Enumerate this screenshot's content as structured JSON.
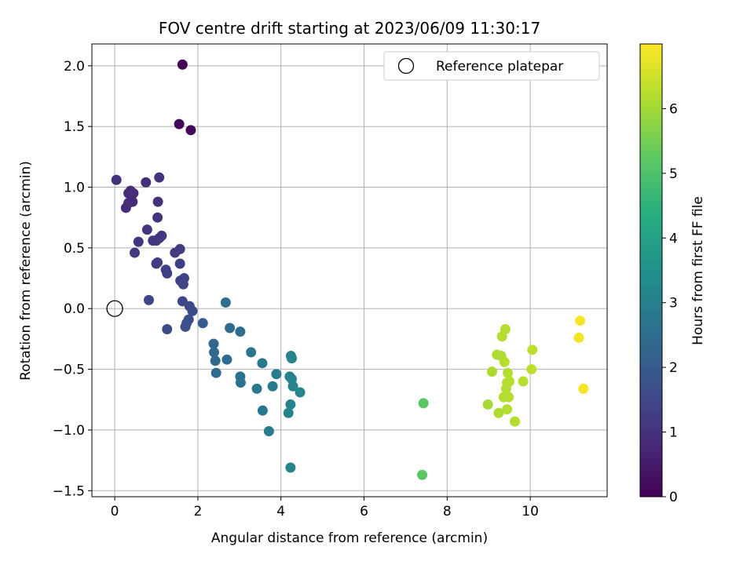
{
  "chart_data": {
    "type": "scatter",
    "title": "FOV centre drift starting at 2023/06/09 11:30:17",
    "xlabel": "Angular distance from reference (arcmin)",
    "ylabel": "Rotation from reference (arcmin)",
    "xlim": [
      -0.55,
      11.85
    ],
    "ylim": [
      -1.55,
      2.18
    ],
    "xticks": [
      0,
      2,
      4,
      6,
      8,
      10
    ],
    "yticks": [
      -1.5,
      -1.0,
      -0.5,
      0.0,
      0.5,
      1.0,
      1.5,
      2.0
    ],
    "xtick_labels": [
      "0",
      "2",
      "4",
      "6",
      "8",
      "10"
    ],
    "ytick_labels": [
      "−1.5",
      "−1.0",
      "−0.5",
      "0.0",
      "0.5",
      "1.0",
      "1.5",
      "2.0"
    ],
    "grid": true,
    "legend": {
      "placement": "top-right",
      "entries": [
        "Reference platepar"
      ]
    },
    "reference_point": {
      "x": 0,
      "y": 0
    },
    "colorbar": {
      "label": "Hours from first FF file",
      "colormap": "viridis",
      "range": [
        0,
        7.0
      ],
      "ticks": [
        0,
        1,
        2,
        3,
        4,
        5,
        6
      ],
      "tick_labels": [
        "0",
        "1",
        "2",
        "3",
        "4",
        "5",
        "6"
      ]
    },
    "points": [
      [
        1.63,
        2.01,
        0.05
      ],
      [
        1.55,
        1.52,
        0.1
      ],
      [
        1.83,
        1.47,
        0.15
      ],
      [
        0.04,
        1.06,
        1.0
      ],
      [
        1.07,
        1.08,
        1.0
      ],
      [
        0.75,
        1.04,
        0.95
      ],
      [
        0.38,
        0.97,
        0.9
      ],
      [
        0.33,
        0.95,
        0.85
      ],
      [
        0.45,
        0.95,
        0.9
      ],
      [
        1.04,
        0.88,
        0.95
      ],
      [
        0.33,
        0.87,
        0.9
      ],
      [
        0.43,
        0.88,
        0.85
      ],
      [
        0.27,
        0.83,
        0.85
      ],
      [
        1.03,
        0.75,
        1.0
      ],
      [
        0.78,
        0.65,
        1.05
      ],
      [
        1.13,
        0.6,
        1.1
      ],
      [
        1.07,
        0.58,
        1.1
      ],
      [
        0.92,
        0.56,
        1.15
      ],
      [
        1.0,
        0.56,
        1.1
      ],
      [
        0.57,
        0.55,
        1.05
      ],
      [
        1.57,
        0.49,
        1.2
      ],
      [
        1.45,
        0.46,
        1.2
      ],
      [
        0.48,
        0.46,
        1.15
      ],
      [
        1.03,
        0.38,
        1.2
      ],
      [
        1.0,
        0.37,
        1.25
      ],
      [
        1.57,
        0.37,
        1.3
      ],
      [
        1.23,
        0.32,
        1.3
      ],
      [
        1.26,
        0.29,
        1.3
      ],
      [
        1.67,
        0.25,
        1.4
      ],
      [
        1.58,
        0.23,
        1.35
      ],
      [
        1.65,
        0.2,
        1.4
      ],
      [
        0.82,
        0.07,
        1.5
      ],
      [
        1.63,
        0.06,
        1.45
      ],
      [
        1.8,
        0.02,
        1.55
      ],
      [
        1.87,
        -0.02,
        1.6
      ],
      [
        1.78,
        -0.09,
        1.65
      ],
      [
        1.73,
        -0.12,
        1.65
      ],
      [
        1.7,
        -0.15,
        1.7
      ],
      [
        1.26,
        -0.17,
        1.6
      ],
      [
        2.12,
        -0.12,
        2.0
      ],
      [
        2.67,
        0.05,
        2.5
      ],
      [
        2.77,
        -0.16,
        2.4
      ],
      [
        3.02,
        -0.19,
        2.5
      ],
      [
        2.38,
        -0.29,
        2.3
      ],
      [
        2.39,
        -0.36,
        2.35
      ],
      [
        2.42,
        -0.43,
        2.35
      ],
      [
        2.7,
        -0.42,
        2.5
      ],
      [
        2.44,
        -0.53,
        2.4
      ],
      [
        3.28,
        -0.36,
        2.7
      ],
      [
        3.55,
        -0.45,
        2.8
      ],
      [
        3.89,
        -0.54,
        2.9
      ],
      [
        3.02,
        -0.56,
        2.6
      ],
      [
        3.03,
        -0.61,
        2.6
      ],
      [
        3.42,
        -0.66,
        2.8
      ],
      [
        3.8,
        -0.64,
        2.9
      ],
      [
        3.56,
        -0.84,
        2.8
      ],
      [
        3.71,
        -1.01,
        2.9
      ],
      [
        4.24,
        -0.39,
        3.1
      ],
      [
        4.26,
        -0.41,
        3.1
      ],
      [
        4.21,
        -0.56,
        3.05
      ],
      [
        4.26,
        -0.58,
        3.1
      ],
      [
        4.29,
        -0.64,
        3.1
      ],
      [
        4.46,
        -0.69,
        3.2
      ],
      [
        4.23,
        -0.79,
        3.1
      ],
      [
        4.18,
        -0.86,
        3.1
      ],
      [
        4.23,
        -1.31,
        3.1
      ],
      [
        7.43,
        -0.78,
        5.2
      ],
      [
        7.4,
        -1.37,
        5.2
      ],
      [
        9.4,
        -0.17,
        6.2
      ],
      [
        9.32,
        -0.23,
        6.2
      ],
      [
        9.2,
        -0.38,
        6.15
      ],
      [
        9.3,
        -0.39,
        6.15
      ],
      [
        10.05,
        -0.34,
        6.3
      ],
      [
        9.38,
        -0.44,
        6.2
      ],
      [
        10.03,
        -0.5,
        6.3
      ],
      [
        9.08,
        -0.52,
        6.1
      ],
      [
        9.46,
        -0.53,
        6.2
      ],
      [
        9.5,
        -0.6,
        6.25
      ],
      [
        9.44,
        -0.61,
        6.2
      ],
      [
        9.83,
        -0.6,
        6.25
      ],
      [
        9.42,
        -0.66,
        6.2
      ],
      [
        9.36,
        -0.73,
        6.2
      ],
      [
        9.48,
        -0.73,
        6.2
      ],
      [
        8.98,
        -0.79,
        6.05
      ],
      [
        9.44,
        -0.83,
        6.2
      ],
      [
        9.24,
        -0.86,
        6.15
      ],
      [
        9.63,
        -0.93,
        6.2
      ],
      [
        11.2,
        -0.1,
        6.9
      ],
      [
        11.17,
        -0.24,
        6.9
      ],
      [
        11.28,
        -0.66,
        6.95
      ]
    ]
  }
}
